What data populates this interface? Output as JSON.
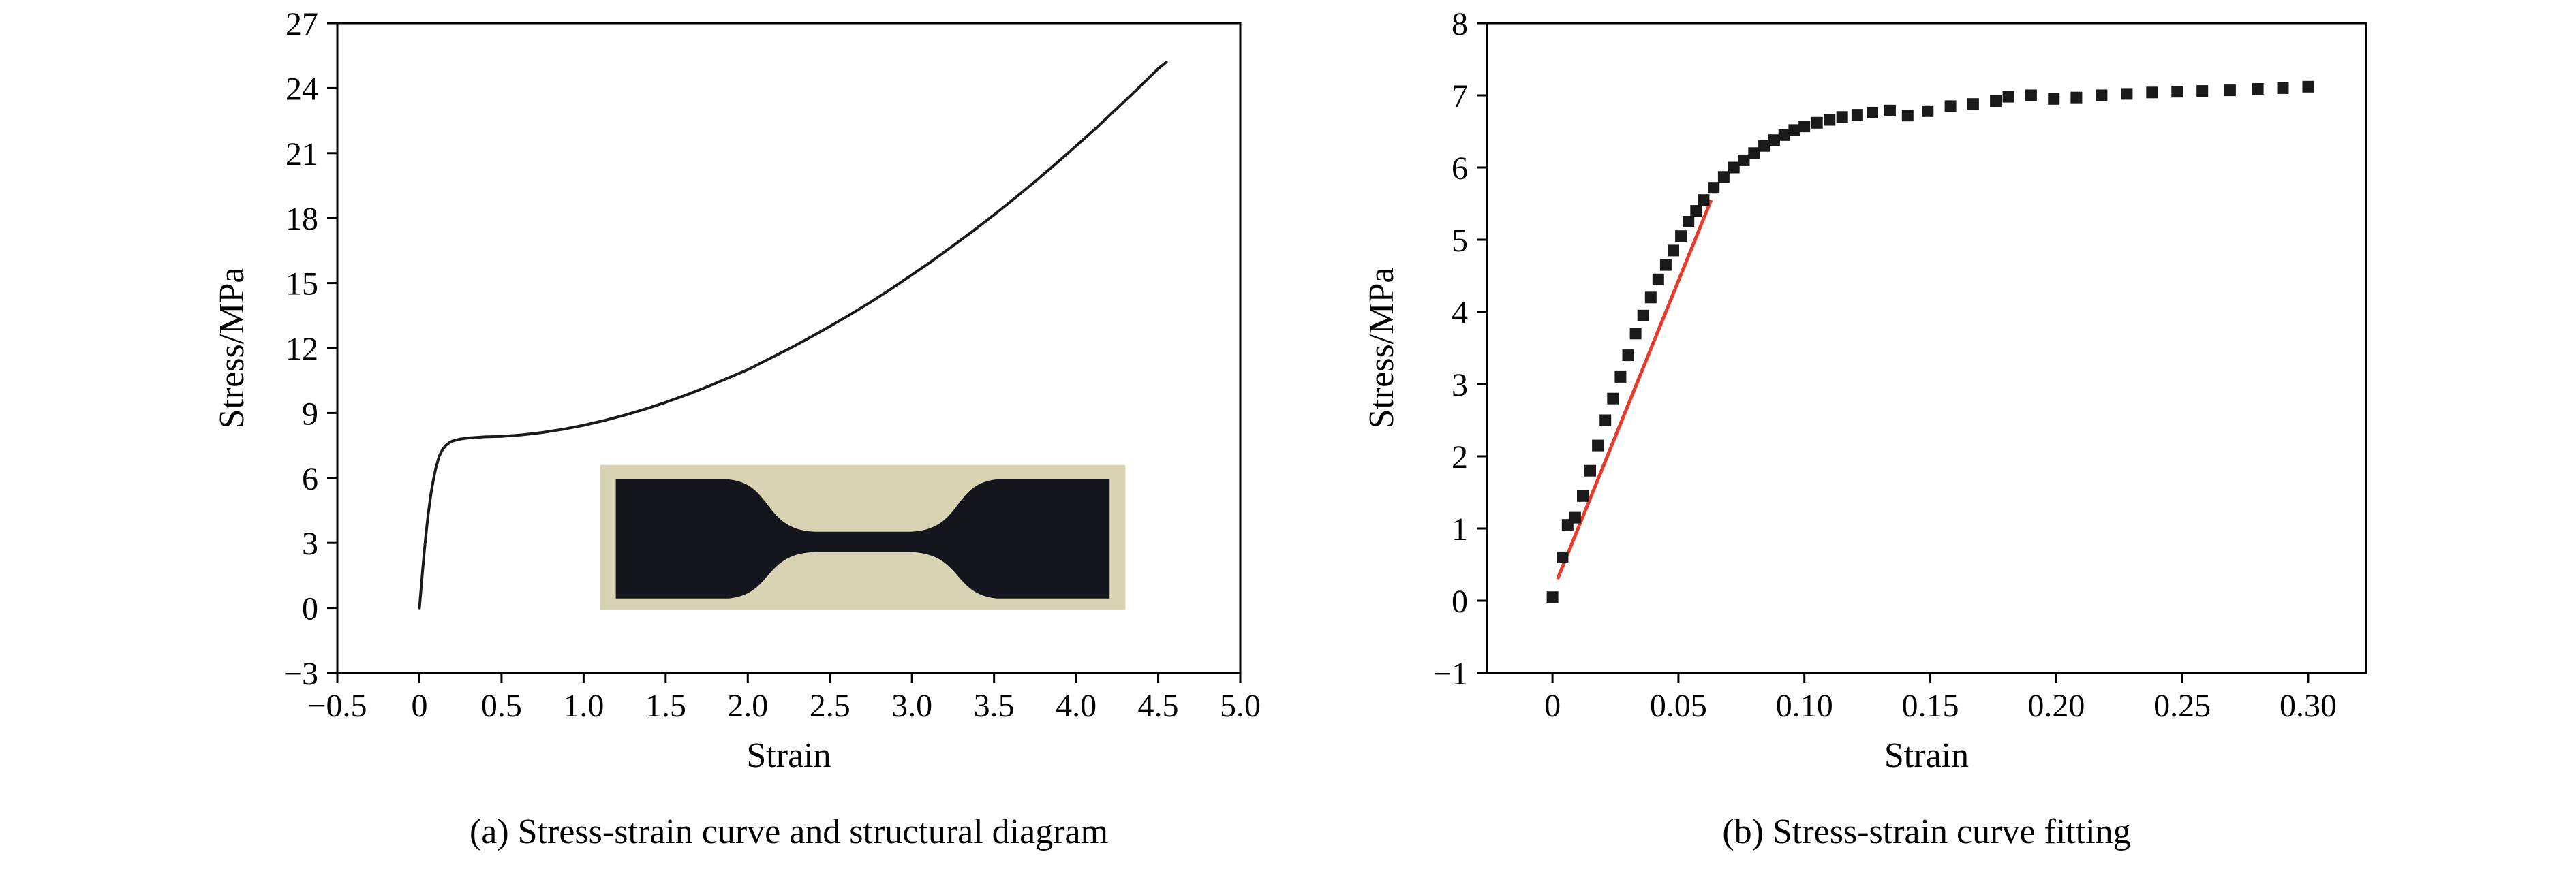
{
  "figure": {
    "background_color": "#ffffff",
    "text_color": "#000000"
  },
  "chart_data": [
    {
      "id": "a",
      "type": "line",
      "title": "(a) Stress-strain curve and structural diagram",
      "xlabel": "Strain",
      "ylabel": "Stress/MPa",
      "xlim": [
        -0.5,
        5.0
      ],
      "ylim": [
        -3,
        27
      ],
      "xticks": [
        -0.5,
        0,
        0.5,
        1.0,
        1.5,
        2.0,
        2.5,
        3.0,
        3.5,
        4.0,
        4.5,
        5.0
      ],
      "xtick_labels": [
        "−0.5",
        "0",
        "0.5",
        "1.0",
        "1.5",
        "2.0",
        "2.5",
        "3.0",
        "3.5",
        "4.0",
        "4.5",
        "5.0"
      ],
      "yticks": [
        -3,
        0,
        3,
        6,
        9,
        12,
        15,
        18,
        21,
        24,
        27
      ],
      "ytick_labels": [
        "−3",
        "0",
        "3",
        "6",
        "9",
        "12",
        "15",
        "18",
        "21",
        "24",
        "27"
      ],
      "grid": false,
      "legend": "none",
      "line_color": "#1a1a1a",
      "series": [
        {
          "name": "stress-strain curve",
          "points": [
            [
              0,
              0
            ],
            [
              0.01,
              0.9
            ],
            [
              0.02,
              1.8
            ],
            [
              0.03,
              2.65
            ],
            [
              0.04,
              3.4
            ],
            [
              0.05,
              4.1
            ],
            [
              0.06,
              4.7
            ],
            [
              0.07,
              5.25
            ],
            [
              0.08,
              5.7
            ],
            [
              0.09,
              6.1
            ],
            [
              0.1,
              6.45
            ],
            [
              0.12,
              7.0
            ],
            [
              0.14,
              7.3
            ],
            [
              0.16,
              7.5
            ],
            [
              0.18,
              7.62
            ],
            [
              0.2,
              7.7
            ],
            [
              0.25,
              7.8
            ],
            [
              0.3,
              7.85
            ],
            [
              0.4,
              7.9
            ],
            [
              0.5,
              7.92
            ],
            [
              0.625,
              7.99
            ],
            [
              0.75,
              8.1
            ],
            [
              0.875,
              8.25
            ],
            [
              1.0,
              8.43
            ],
            [
              1.125,
              8.65
            ],
            [
              1.25,
              8.9
            ],
            [
              1.375,
              9.18
            ],
            [
              1.5,
              9.49
            ],
            [
              1.625,
              9.83
            ],
            [
              1.75,
              10.2
            ],
            [
              1.875,
              10.6
            ],
            [
              2.0,
              11.0
            ],
            [
              2.125,
              11.48
            ],
            [
              2.25,
              11.96
            ],
            [
              2.375,
              12.47
            ],
            [
              2.5,
              13.0
            ],
            [
              2.625,
              13.55
            ],
            [
              2.75,
              14.13
            ],
            [
              2.875,
              14.74
            ],
            [
              3.0,
              15.38
            ],
            [
              3.125,
              16.03
            ],
            [
              3.25,
              16.72
            ],
            [
              3.375,
              17.42
            ],
            [
              3.5,
              18.15
            ],
            [
              3.625,
              18.91
            ],
            [
              3.75,
              19.69
            ],
            [
              3.875,
              20.5
            ],
            [
              4.0,
              21.33
            ],
            [
              4.125,
              22.18
            ],
            [
              4.25,
              23.07
            ],
            [
              4.375,
              23.97
            ],
            [
              4.5,
              24.9
            ],
            [
              4.55,
              25.2
            ]
          ]
        }
      ],
      "inset": {
        "description": "photograph of dog-bone tensile specimen",
        "x_range": [
          1.1,
          4.3
        ],
        "y_range": [
          -0.1,
          6.6
        ],
        "background_color": "#d8d3b2",
        "specimen_color": "#15161d"
      }
    },
    {
      "id": "b",
      "type": "scatter",
      "title": "(b) Stress-strain curve fitting",
      "xlabel": "Strain",
      "ylabel": "Stress/MPa",
      "xlim": [
        -0.026,
        0.323
      ],
      "ylim": [
        -1,
        8
      ],
      "xticks": [
        0,
        0.05,
        0.1,
        0.15,
        0.2,
        0.25,
        0.3
      ],
      "xtick_labels": [
        "0",
        "0.05",
        "0.10",
        "0.15",
        "0.20",
        "0.25",
        "0.30"
      ],
      "yticks": [
        -1,
        0,
        1,
        2,
        3,
        4,
        5,
        6,
        7,
        8
      ],
      "ytick_labels": [
        "−1",
        "0",
        "1",
        "2",
        "3",
        "4",
        "5",
        "6",
        "7",
        "8"
      ],
      "grid": false,
      "legend": "none",
      "scatter": {
        "name": "experimental data",
        "marker": "square",
        "color": "#1a1a1a",
        "size": 17,
        "points": [
          [
            0.0,
            0.05
          ],
          [
            0.004,
            0.6
          ],
          [
            0.006,
            1.05
          ],
          [
            0.009,
            1.15
          ],
          [
            0.012,
            1.45
          ],
          [
            0.015,
            1.8
          ],
          [
            0.018,
            2.15
          ],
          [
            0.021,
            2.5
          ],
          [
            0.024,
            2.8
          ],
          [
            0.027,
            3.1
          ],
          [
            0.03,
            3.4
          ],
          [
            0.033,
            3.7
          ],
          [
            0.036,
            3.95
          ],
          [
            0.039,
            4.2
          ],
          [
            0.042,
            4.45
          ],
          [
            0.045,
            4.65
          ],
          [
            0.048,
            4.85
          ],
          [
            0.051,
            5.05
          ],
          [
            0.054,
            5.25
          ],
          [
            0.057,
            5.4
          ],
          [
            0.06,
            5.55
          ],
          [
            0.064,
            5.72
          ],
          [
            0.068,
            5.87
          ],
          [
            0.072,
            6.0
          ],
          [
            0.076,
            6.1
          ],
          [
            0.08,
            6.2
          ],
          [
            0.084,
            6.3
          ],
          [
            0.088,
            6.38
          ],
          [
            0.092,
            6.45
          ],
          [
            0.096,
            6.52
          ],
          [
            0.1,
            6.57
          ],
          [
            0.105,
            6.62
          ],
          [
            0.11,
            6.66
          ],
          [
            0.115,
            6.7
          ],
          [
            0.121,
            6.73
          ],
          [
            0.127,
            6.76
          ],
          [
            0.134,
            6.79
          ],
          [
            0.141,
            6.72
          ],
          [
            0.149,
            6.78
          ],
          [
            0.158,
            6.85
          ],
          [
            0.167,
            6.88
          ],
          [
            0.176,
            6.92
          ],
          [
            0.181,
            6.98
          ],
          [
            0.19,
            7.0
          ],
          [
            0.199,
            6.95
          ],
          [
            0.208,
            6.97
          ],
          [
            0.218,
            7.0
          ],
          [
            0.228,
            7.02
          ],
          [
            0.238,
            7.04
          ],
          [
            0.248,
            7.05
          ],
          [
            0.258,
            7.06
          ],
          [
            0.269,
            7.07
          ],
          [
            0.28,
            7.09
          ],
          [
            0.29,
            7.1
          ],
          [
            0.3,
            7.12
          ]
        ]
      },
      "fit_line": {
        "name": "linear fit",
        "color": "#e93a2e",
        "x1": 0.002,
        "y1": 0.3,
        "x2": 0.063,
        "y2": 5.55
      }
    }
  ]
}
